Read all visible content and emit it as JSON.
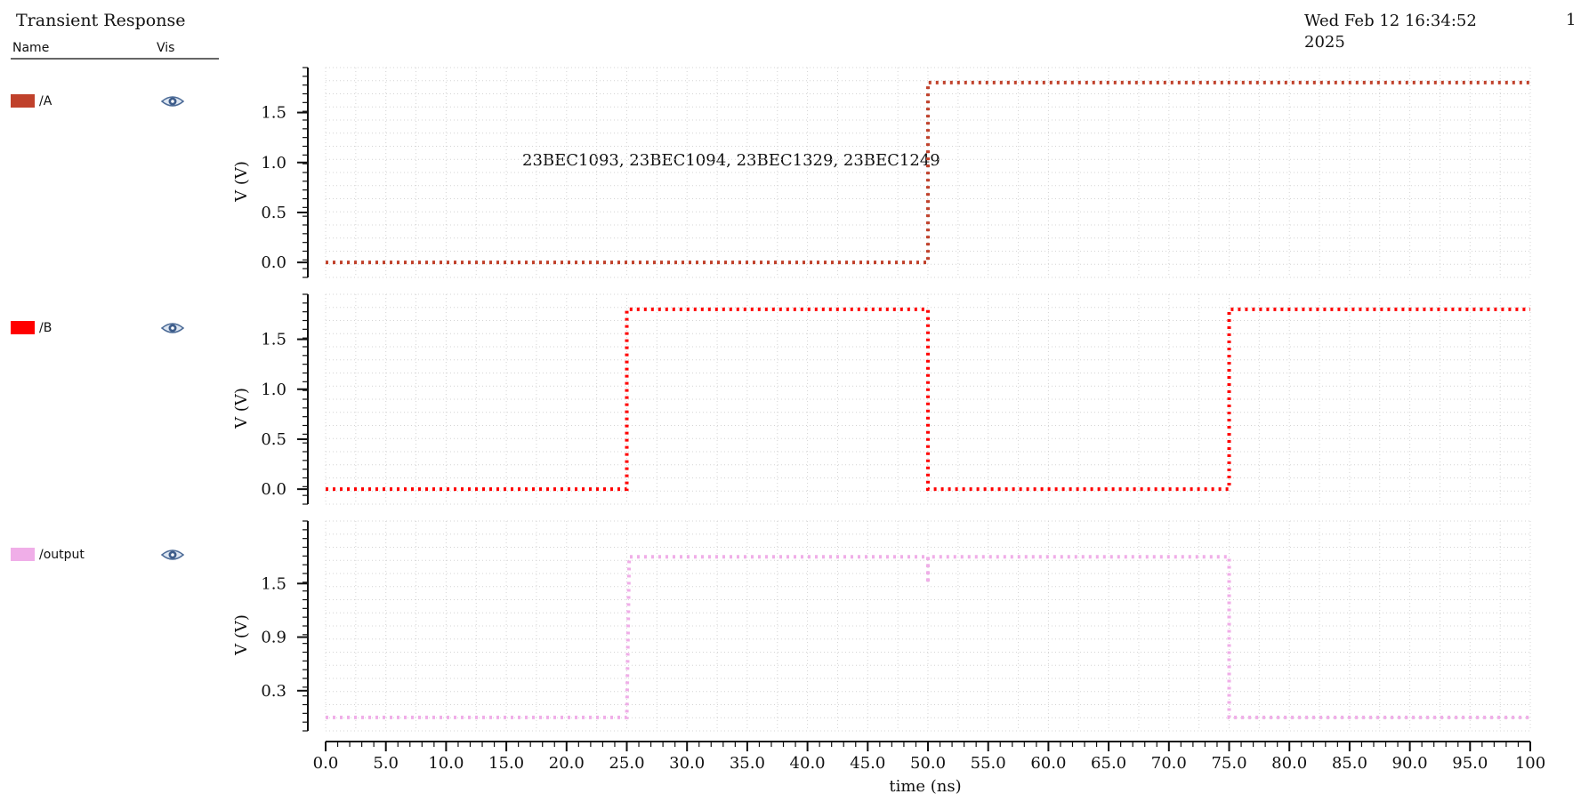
{
  "header": {
    "title": "Transient Response",
    "date": "Wed Feb 12 16:34:52 2025",
    "page": "1"
  },
  "legend": {
    "name_header": "Name",
    "vis_header": "Vis",
    "items": [
      {
        "label": "/A",
        "color": "#c0412b",
        "icon": "eye-icon"
      },
      {
        "label": "/B",
        "color": "#ff0000",
        "icon": "eye-icon"
      },
      {
        "label": "/output",
        "color": "#f0aee8",
        "icon": "eye-icon"
      }
    ]
  },
  "chart_data": {
    "type": "line",
    "annotation": "23BEC1093, 23BEC1094, 23BEC1329, 23BEC1249",
    "xlabel": "time (ns)",
    "xlim": [
      0,
      100
    ],
    "x_ticks": [
      "0.0",
      "5.0",
      "10.0",
      "15.0",
      "20.0",
      "25.0",
      "30.0",
      "35.0",
      "40.0",
      "45.0",
      "50.0",
      "55.0",
      "60.0",
      "65.0",
      "70.0",
      "75.0",
      "80.0",
      "85.0",
      "90.0",
      "95.0",
      "100"
    ],
    "grid": true,
    "line_style": "dotted",
    "panels": [
      {
        "ylabel": "V (V)",
        "ylim": [
          -0.15,
          1.95
        ],
        "y_ticks": [
          0.0,
          0.5,
          1.0,
          1.5
        ],
        "y_tick_labels": [
          "0.0",
          "0.5",
          "1.0",
          "1.5"
        ],
        "series": [
          {
            "name": "/A",
            "color": "#c0412b",
            "x": [
              0,
              50,
              50,
              100
            ],
            "y": [
              0,
              0,
              1.8,
              1.8
            ]
          }
        ]
      },
      {
        "ylabel": "V (V)",
        "ylim": [
          -0.15,
          1.95
        ],
        "y_ticks": [
          0.0,
          0.5,
          1.0,
          1.5
        ],
        "y_tick_labels": [
          "0.0",
          "0.5",
          "1.0",
          "1.5"
        ],
        "series": [
          {
            "name": "/B",
            "color": "#ff0000",
            "x": [
              0,
              25,
              25,
              50,
              50,
              75,
              75,
              100
            ],
            "y": [
              0,
              0,
              1.8,
              1.8,
              0,
              0,
              1.8,
              1.8
            ]
          }
        ]
      },
      {
        "ylabel": "V (V)",
        "ylim": [
          -0.15,
          2.2
        ],
        "y_ticks": [
          0.3,
          0.9,
          1.5
        ],
        "y_tick_labels": [
          "0.3",
          "0.9",
          "1.5"
        ],
        "series": [
          {
            "name": "/output",
            "color": "#f0aee8",
            "x": [
              0,
              25,
              25.2,
              50,
              50,
              50,
              75,
              75,
              100
            ],
            "y": [
              0,
              0,
              1.8,
              1.8,
              1.5,
              1.8,
              1.8,
              0,
              0
            ]
          }
        ]
      }
    ]
  }
}
